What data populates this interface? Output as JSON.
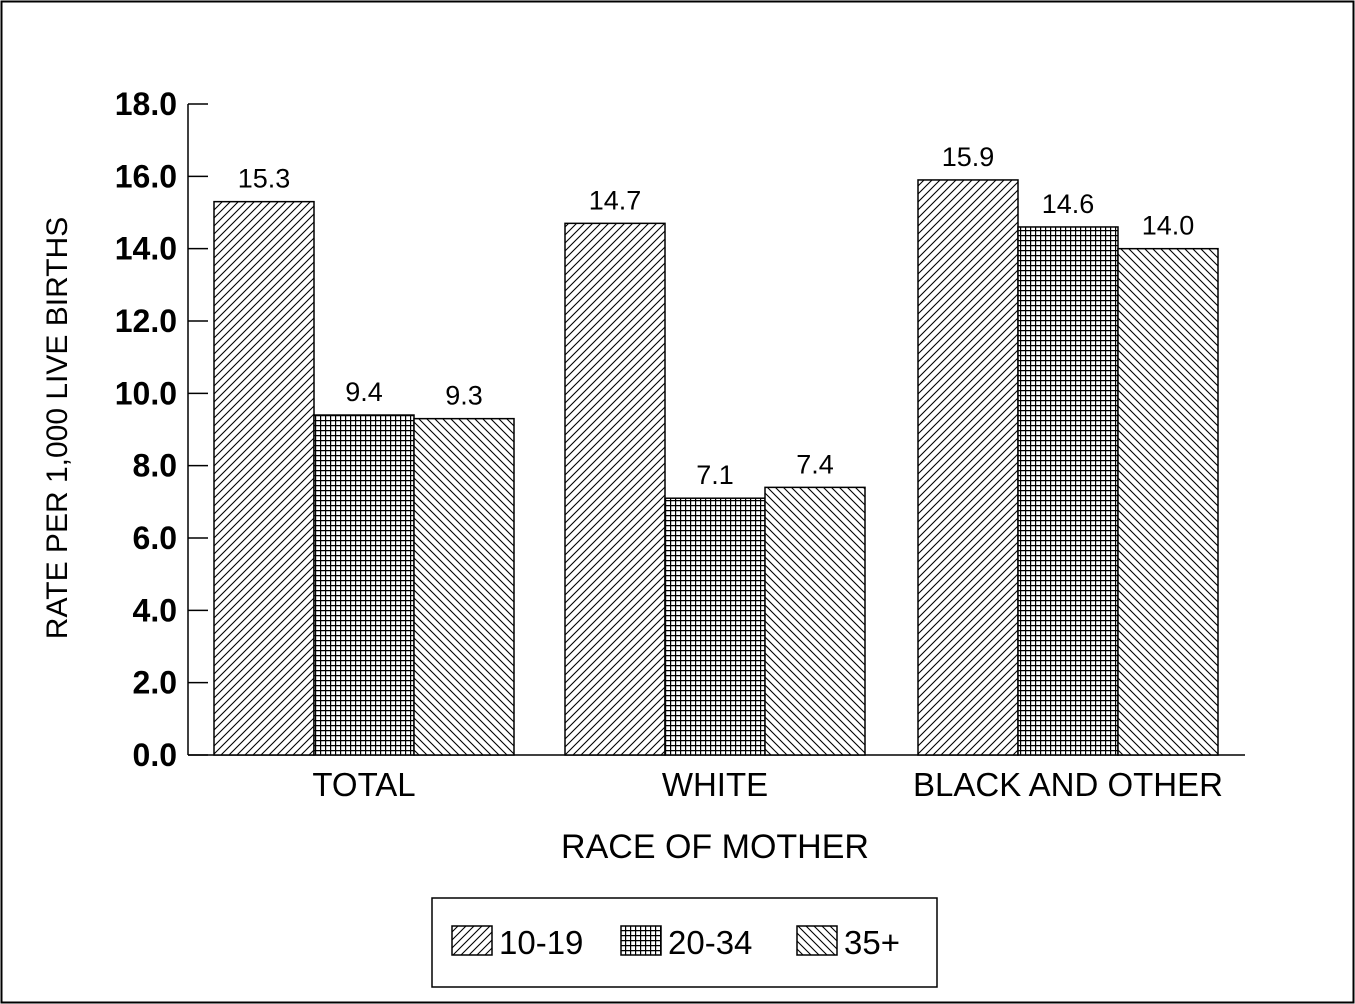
{
  "chart_data": {
    "type": "bar",
    "title": "",
    "xlabel": "RACE OF MOTHER",
    "ylabel": "RATE PER 1,000 LIVE BIRTHS",
    "ylim": [
      0,
      18
    ],
    "yticks": [
      "0.0",
      "2.0",
      "4.0",
      "6.0",
      "8.0",
      "10.0",
      "12.0",
      "14.0",
      "16.0",
      "18.0"
    ],
    "categories": [
      "TOTAL",
      "WHITE",
      "BLACK AND OTHER"
    ],
    "series": [
      {
        "name": "10-19",
        "values": [
          15.3,
          14.7,
          15.9
        ],
        "labels": [
          "15.3",
          "14.7",
          "15.9"
        ],
        "pattern": "forward-diagonal-hatch"
      },
      {
        "name": "20-34",
        "values": [
          9.4,
          7.1,
          14.6
        ],
        "labels": [
          "9.4",
          "7.1",
          "14.6"
        ],
        "pattern": "crosshatch"
      },
      {
        "name": "35+",
        "values": [
          9.3,
          7.4,
          14.0
        ],
        "labels": [
          "9.3",
          "7.4",
          "14.0"
        ],
        "pattern": "back-diagonal-hatch"
      }
    ],
    "legend_position": "bottom-center",
    "grid": false,
    "colors": {
      "ink": "#000000",
      "background": "#ffffff"
    }
  }
}
